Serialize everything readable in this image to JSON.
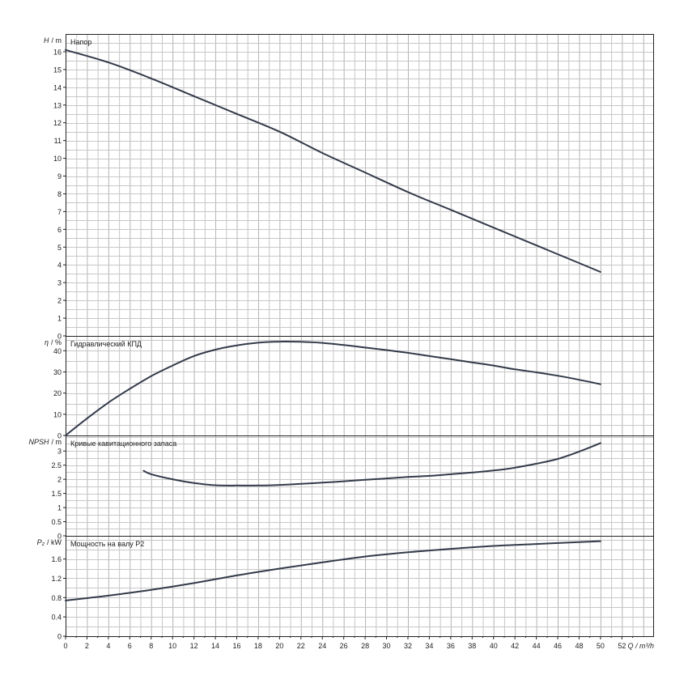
{
  "chart_data": [
    {
      "type": "line",
      "axis_label_main": "H",
      "axis_label_unit": "/ m",
      "title": "Напор",
      "ylim": [
        0,
        17
      ],
      "yticks": [
        0,
        1,
        2,
        3,
        4,
        5,
        6,
        7,
        8,
        9,
        10,
        11,
        12,
        13,
        14,
        15,
        16
      ],
      "grid": true,
      "series": [
        {
          "x": [
            0,
            4,
            8,
            12,
            16,
            20,
            24,
            28,
            32,
            36,
            40,
            44,
            48,
            50
          ],
          "y": [
            16.1,
            15.4,
            14.5,
            13.5,
            12.5,
            11.5,
            10.3,
            9.2,
            8.1,
            7.1,
            6.1,
            5.1,
            4.1,
            3.6
          ]
        }
      ]
    },
    {
      "type": "line",
      "axis_label_main": "η",
      "axis_label_unit": "/ %",
      "title": "Гидравлический КПД",
      "ylim": [
        0,
        47
      ],
      "yticks": [
        0,
        10,
        20,
        30,
        40
      ],
      "grid": true,
      "series": [
        {
          "x": [
            0,
            2,
            4,
            6,
            8,
            10,
            12,
            14,
            16,
            18,
            20,
            22,
            24,
            26,
            28,
            30,
            32,
            34,
            36,
            38,
            40,
            42,
            44,
            46,
            48,
            50
          ],
          "y": [
            0,
            8,
            15.5,
            22,
            28,
            33,
            37.5,
            40.5,
            42.5,
            43.8,
            44.3,
            44.2,
            43.7,
            42.7,
            41.5,
            40.3,
            39,
            37.5,
            36,
            34.5,
            33,
            31.2,
            29.8,
            28.2,
            26.3,
            24.2
          ]
        }
      ]
    },
    {
      "type": "line",
      "axis_label_main": "NPSH",
      "axis_label_unit": "/ m",
      "title": "Кривые кавитационного запаса",
      "ylim": [
        0,
        3.55
      ],
      "yticks": [
        0,
        0.5,
        1,
        1.5,
        2,
        2.5,
        3
      ],
      "ytick_labels": [
        "0",
        "0.5",
        "1",
        "1.5",
        "2",
        "2.5",
        "3"
      ],
      "grid": true,
      "series": [
        {
          "x": [
            7.3,
            8,
            10,
            12,
            14,
            16,
            18,
            20,
            22,
            24,
            26,
            28,
            30,
            32,
            34,
            36,
            38,
            40,
            42,
            44,
            46,
            48,
            50
          ],
          "y": [
            2.3,
            2.18,
            2.0,
            1.87,
            1.79,
            1.78,
            1.78,
            1.8,
            1.84,
            1.88,
            1.93,
            1.98,
            2.03,
            2.08,
            2.12,
            2.18,
            2.24,
            2.31,
            2.41,
            2.55,
            2.72,
            2.98,
            3.28
          ]
        }
      ]
    },
    {
      "type": "line",
      "axis_label_main": "P₂",
      "axis_label_unit": "/ kW",
      "title": "Мощность на валу P2",
      "ylim": [
        0,
        2.08
      ],
      "yticks": [
        0,
        0.4,
        0.8,
        1.2,
        1.6
      ],
      "ytick_labels": [
        "0",
        "0.4",
        "0.8",
        "1.2",
        "1.6"
      ],
      "grid": true,
      "series": [
        {
          "x": [
            0,
            4,
            8,
            12,
            16,
            20,
            24,
            28,
            32,
            36,
            40,
            44,
            48,
            50
          ],
          "y": [
            0.74,
            0.84,
            0.96,
            1.1,
            1.26,
            1.4,
            1.53,
            1.65,
            1.74,
            1.81,
            1.87,
            1.91,
            1.95,
            1.97
          ]
        }
      ]
    }
  ],
  "x_axis": {
    "label": "Q / m³/h",
    "xlim": [
      0,
      55
    ],
    "ticks": [
      0,
      2,
      4,
      6,
      8,
      10,
      12,
      14,
      16,
      18,
      20,
      22,
      24,
      26,
      28,
      30,
      32,
      34,
      36,
      38,
      40,
      42,
      44,
      46,
      48,
      50,
      52
    ]
  },
  "colors": {
    "curve": "#333a4a",
    "grid": "#c7c7c7",
    "frame": "#222222"
  }
}
